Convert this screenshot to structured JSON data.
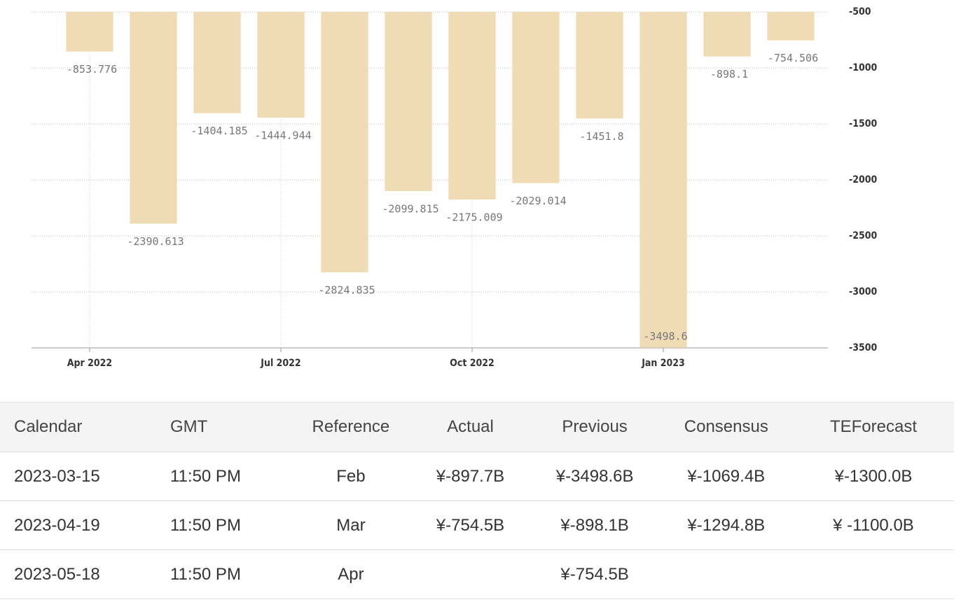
{
  "chart_data": {
    "type": "bar",
    "categories": [
      "Apr 2022",
      null,
      null,
      "Jul 2022",
      null,
      null,
      "Oct 2022",
      null,
      null,
      "Jan 2023",
      null,
      null
    ],
    "values": [
      -853.776,
      -2390.613,
      -1404.185,
      -1444.944,
      -2824.835,
      -2099.815,
      -2175.009,
      -2029.014,
      -1451.8,
      -3498.6,
      -898.1,
      -754.506
    ],
    "color": "#efdcb5",
    "ylim": [
      -3500,
      -500
    ],
    "yticks": [
      -3500,
      -3000,
      -2500,
      -2000,
      -1500,
      -1000,
      -500
    ],
    "grid": true
  },
  "table": {
    "header": [
      "Calendar",
      "GMT",
      "Reference",
      "Actual",
      "Previous",
      "Consensus",
      "TEForecast"
    ],
    "rows": [
      [
        "2023-03-15",
        "11:50 PM",
        "Feb",
        "¥-897.7B",
        "¥-3498.6B",
        "¥-1069.4B",
        "¥-1300.0B"
      ],
      [
        "2023-04-19",
        "11:50 PM",
        "Mar",
        "¥-754.5B",
        "¥-898.1B",
        "¥-1294.8B",
        "¥ -1100.0B"
      ],
      [
        "2023-05-18",
        "11:50 PM",
        "Apr",
        null,
        "¥-754.5B",
        null,
        null
      ]
    ]
  }
}
